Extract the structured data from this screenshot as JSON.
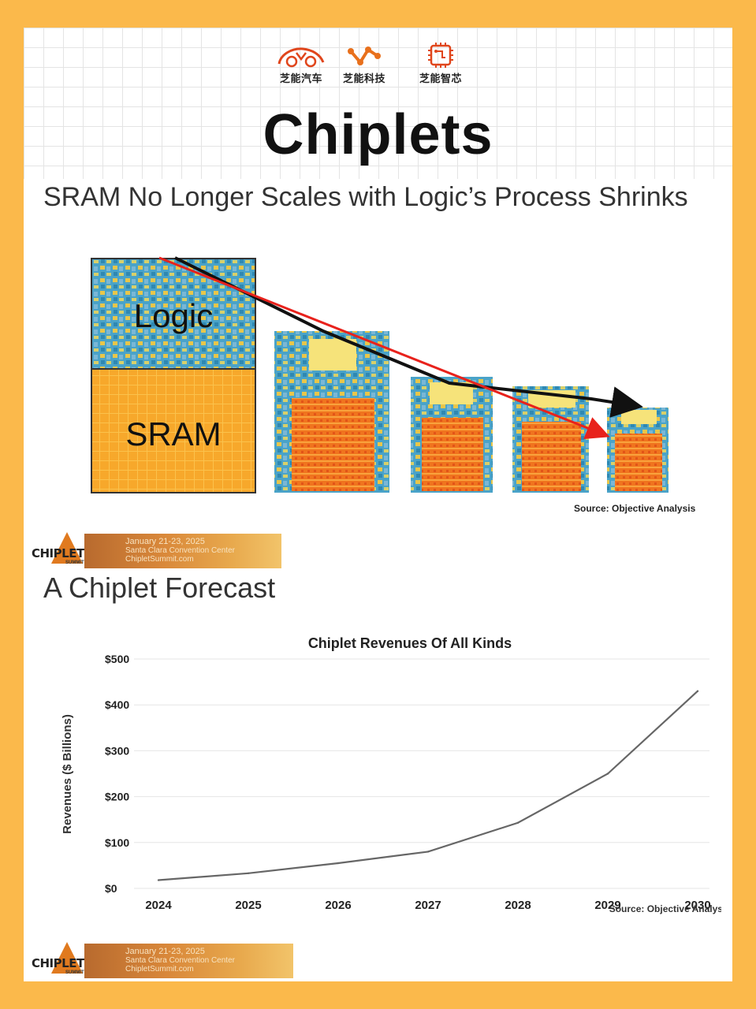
{
  "brands": [
    {
      "name": "芝能汽车",
      "icon": "car-outline-icon"
    },
    {
      "name": "芝能科技",
      "icon": "network-nodes-icon"
    },
    {
      "name": "芝能智芯",
      "icon": "chip-icon"
    }
  ],
  "title": "Chiplets",
  "sram_section": {
    "heading": "SRAM No Longer Scales with Logic’s Process Shrinks",
    "labels": {
      "logic": "Logic",
      "sram": "SRAM"
    },
    "source": "Source: Objective Analysis"
  },
  "summit_banner": {
    "logo": "CHIPLET",
    "logo_sub": "SUMMIT",
    "line1": "January 21-23, 2025",
    "line2": "Santa Clara Convention Center",
    "line3": "ChipletSummit.com"
  },
  "forecast_section": {
    "heading": "A Chiplet Forecast"
  },
  "colors": {
    "background": "#fbb94b",
    "line": "#666666",
    "arrow_red": "#e8221c",
    "arrow_black": "#111111"
  },
  "chart_data": {
    "type": "line",
    "title": "Chiplet Revenues Of All Kinds",
    "ylabel": "Revenues ($ Billions)",
    "xlabel": "",
    "x": [
      2024,
      2025,
      2026,
      2027,
      2028,
      2029,
      2030
    ],
    "values": [
      18,
      33,
      55,
      80,
      143,
      250,
      430
    ],
    "ylim": [
      0,
      500
    ],
    "yticks": [
      "$0",
      "$100",
      "$200",
      "$300",
      "$400",
      "$500"
    ],
    "grid": "horizontal",
    "source": "Source: Objective Analysis"
  }
}
